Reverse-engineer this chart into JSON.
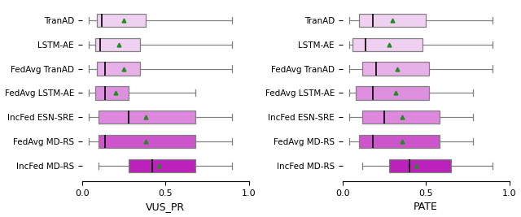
{
  "labels": [
    "TranAD",
    "LSTM-AE",
    "FedAvg TranAD",
    "FedAvg LSTM-AE",
    "IncFed ESN-SRE",
    "FedAvg MD-RS",
    "IncFed MD-RS"
  ],
  "vus_pr": {
    "whislo": [
      0.04,
      0.04,
      0.04,
      0.04,
      0.04,
      0.04,
      0.1
    ],
    "q1": [
      0.09,
      0.08,
      0.09,
      0.08,
      0.1,
      0.1,
      0.28
    ],
    "med": [
      0.12,
      0.11,
      0.14,
      0.14,
      0.28,
      0.14,
      0.42
    ],
    "q3": [
      0.38,
      0.35,
      0.35,
      0.28,
      0.68,
      0.68,
      0.68
    ],
    "whishi": [
      0.9,
      0.9,
      0.9,
      0.68,
      0.9,
      0.9,
      0.9
    ],
    "mean": [
      0.25,
      0.22,
      0.25,
      0.2,
      0.38,
      0.38,
      0.46
    ],
    "fliers": [
      [],
      [],
      [],
      [],
      [],
      [],
      []
    ]
  },
  "pate": {
    "whislo": [
      0.04,
      0.04,
      0.04,
      0.04,
      0.04,
      0.04,
      0.12
    ],
    "q1": [
      0.1,
      0.06,
      0.12,
      0.08,
      0.12,
      0.1,
      0.28
    ],
    "med": [
      0.18,
      0.14,
      0.2,
      0.18,
      0.25,
      0.18,
      0.4
    ],
    "q3": [
      0.5,
      0.48,
      0.52,
      0.52,
      0.58,
      0.58,
      0.65
    ],
    "whishi": [
      0.9,
      0.9,
      0.9,
      0.78,
      0.78,
      0.78,
      0.9
    ],
    "mean": [
      0.3,
      0.28,
      0.33,
      0.32,
      0.36,
      0.36,
      0.44
    ],
    "fliers": [
      [],
      [],
      [],
      [],
      [],
      [],
      []
    ]
  },
  "colors": [
    "#f0d0f0",
    "#f0d0f0",
    "#e8b0e8",
    "#dd90dd",
    "#dd88dd",
    "#cc55cc",
    "#bb22bb"
  ],
  "xlabel_left": "VUS_PR",
  "xlabel_right": "PATE",
  "xlim": [
    0.0,
    1.0
  ],
  "xticks": [
    0.0,
    0.5,
    1.0
  ],
  "xticklabels": [
    "0.0",
    "0.5",
    "1.0"
  ]
}
